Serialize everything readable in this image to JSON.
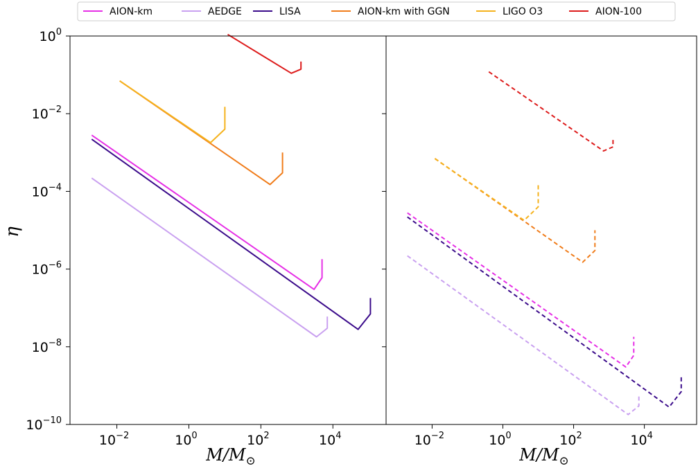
{
  "chart_data": {
    "type": "line",
    "xscale": "log",
    "yscale": "log",
    "xlim": [
      0.0005,
      300000
    ],
    "ylim": [
      1e-10,
      1
    ],
    "xlabel": {
      "base": "M/M",
      "sub": "⊙"
    },
    "ylabel": "η",
    "grid": false,
    "legend": {
      "placement": "top",
      "entries": [
        "AION-km",
        "AEDGE",
        "LISA",
        "AION-km with GGN",
        "LIGO O3",
        "AION-100"
      ]
    },
    "x_ticks": [
      {
        "base": "10",
        "exp": "−2",
        "value": 0.01
      },
      {
        "base": "10",
        "exp": "0",
        "value": 1
      },
      {
        "base": "10",
        "exp": "2",
        "value": 100
      },
      {
        "base": "10",
        "exp": "4",
        "value": 10000
      }
    ],
    "y_ticks": [
      {
        "base": "10",
        "exp": "0",
        "value": 1
      },
      {
        "base": "10",
        "exp": "−2",
        "value": 0.01
      },
      {
        "base": "10",
        "exp": "−4",
        "value": 0.0001
      },
      {
        "base": "10",
        "exp": "−6",
        "value": 1e-06
      },
      {
        "base": "10",
        "exp": "−8",
        "value": 1e-08
      },
      {
        "base": "10",
        "exp": "−10",
        "value": 1e-10
      }
    ],
    "panels": [
      {
        "line_style": "solid",
        "series": [
          {
            "name": "AION-km",
            "color": "#e62ee6",
            "x": [
              0.002,
              3000,
              5000,
              5000
            ],
            "y": [
              0.0028,
              3e-07,
              6e-07,
              1.8e-06
            ]
          },
          {
            "name": "AEDGE",
            "color": "#c9a0f0",
            "x": [
              0.002,
              3500,
              7000,
              7000
            ],
            "y": [
              0.00022,
              1.8e-08,
              3e-08,
              6e-08
            ]
          },
          {
            "name": "LISA",
            "color": "#3a0a8a",
            "x": [
              0.002,
              50000,
              110000,
              110000
            ],
            "y": [
              0.0022,
              2.8e-08,
              7e-08,
              1.8e-07
            ]
          },
          {
            "name": "AION-km with GGN",
            "color": "#f07c1a",
            "x": [
              0.012,
              180,
              400,
              400
            ],
            "y": [
              0.07,
              0.00015,
              0.0003,
              0.001
            ]
          },
          {
            "name": "LIGO O3",
            "color": "#f5b21c",
            "x": [
              0.012,
              4,
              10,
              10
            ],
            "y": [
              0.07,
              0.0018,
              0.004,
              0.015
            ]
          },
          {
            "name": "AION-100",
            "color": "#dd1a1a",
            "x": [
              12,
              700,
              1300,
              1300
            ],
            "y": [
              1.1,
              0.11,
              0.14,
              0.22
            ]
          }
        ]
      },
      {
        "line_style": "dashed",
        "series": [
          {
            "name": "AION-km",
            "color": "#e62ee6",
            "x": [
              0.002,
              3000,
              5000,
              5000
            ],
            "y": [
              2.8e-05,
              3e-09,
              6e-09,
              1.8e-08
            ]
          },
          {
            "name": "AEDGE",
            "color": "#c9a0f0",
            "x": [
              0.002,
              3500,
              7000,
              7000
            ],
            "y": [
              2.2e-06,
              1.8e-10,
              3e-10,
              6e-10
            ]
          },
          {
            "name": "LISA",
            "color": "#3a0a8a",
            "x": [
              0.002,
              50000,
              110000,
              110000
            ],
            "y": [
              2.2e-05,
              2.8e-10,
              7e-10,
              1.8e-09
            ]
          },
          {
            "name": "AION-km with GGN",
            "color": "#f07c1a",
            "x": [
              0.012,
              180,
              400,
              400
            ],
            "y": [
              0.0007,
              1.5e-06,
              3e-06,
              1e-05
            ]
          },
          {
            "name": "LIGO O3",
            "color": "#f5b21c",
            "x": [
              0.012,
              4,
              10,
              10
            ],
            "y": [
              0.0007,
              1.8e-05,
              4e-05,
              0.00015
            ]
          },
          {
            "name": "AION-100",
            "color": "#dd1a1a",
            "x": [
              0.4,
              700,
              1300,
              1300
            ],
            "y": [
              0.12,
              0.0011,
              0.0014,
              0.0022
            ]
          }
        ]
      }
    ]
  }
}
